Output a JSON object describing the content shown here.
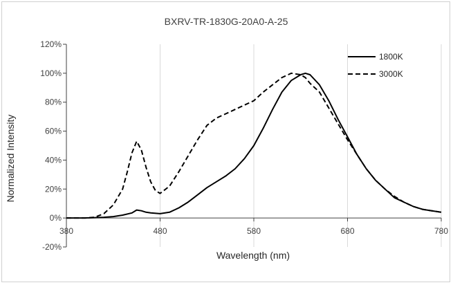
{
  "chart_data": {
    "type": "line",
    "title": "BXRV-TR-1830G-20A0-A-25",
    "xlabel": "Wavelength (nm)",
    "ylabel": "Normalized Intensity",
    "xlim": [
      380,
      780
    ],
    "ylim": [
      -20,
      120
    ],
    "x_ticks": [
      380,
      480,
      580,
      680,
      780
    ],
    "x_tick_labels": [
      "380",
      "480",
      "580",
      "680",
      "780"
    ],
    "y_ticks": [
      -20,
      0,
      20,
      40,
      60,
      80,
      100,
      120
    ],
    "y_tick_labels": [
      "-20%",
      "0%",
      "20%",
      "40%",
      "60%",
      "80%",
      "100%",
      "120%"
    ],
    "grid": "vertical",
    "legend_position": "top-right",
    "series": [
      {
        "name": "1800K",
        "style": "solid",
        "color": "#000000",
        "x": [
          380,
          400,
          420,
          430,
          440,
          450,
          455,
          460,
          465,
          470,
          480,
          490,
          500,
          510,
          520,
          530,
          540,
          550,
          560,
          570,
          580,
          590,
          600,
          610,
          620,
          630,
          635,
          640,
          650,
          660,
          670,
          680,
          690,
          700,
          710,
          720,
          730,
          740,
          750,
          760,
          770,
          780
        ],
        "y": [
          0,
          0,
          0.5,
          1,
          2,
          3.5,
          5.5,
          5,
          4,
          3.5,
          3,
          4,
          7,
          11,
          16,
          21,
          25,
          29,
          34,
          41,
          50,
          62,
          75,
          87,
          95,
          99,
          100,
          99,
          92,
          81,
          68,
          56,
          44,
          34,
          26,
          20,
          14,
          11,
          8,
          6,
          5,
          4
        ]
      },
      {
        "name": "3000K",
        "style": "dashed",
        "color": "#000000",
        "x": [
          380,
          400,
          410,
          420,
          430,
          440,
          445,
          450,
          455,
          460,
          465,
          470,
          475,
          480,
          490,
          500,
          510,
          520,
          530,
          540,
          550,
          560,
          570,
          580,
          590,
          600,
          610,
          620,
          630,
          635,
          640,
          650,
          660,
          670,
          680,
          690,
          700,
          710,
          720,
          730,
          740,
          750,
          760,
          770,
          780
        ],
        "y": [
          0,
          0,
          0.5,
          3,
          9,
          20,
          32,
          45,
          53,
          47,
          35,
          25,
          19,
          17,
          22,
          32,
          43,
          54,
          64,
          69,
          72,
          75,
          78,
          81,
          87,
          92,
          97,
          100,
          99,
          97,
          93,
          87,
          76,
          65,
          54,
          44,
          34,
          26,
          20,
          15,
          11,
          8,
          6,
          5,
          4
        ]
      }
    ]
  }
}
